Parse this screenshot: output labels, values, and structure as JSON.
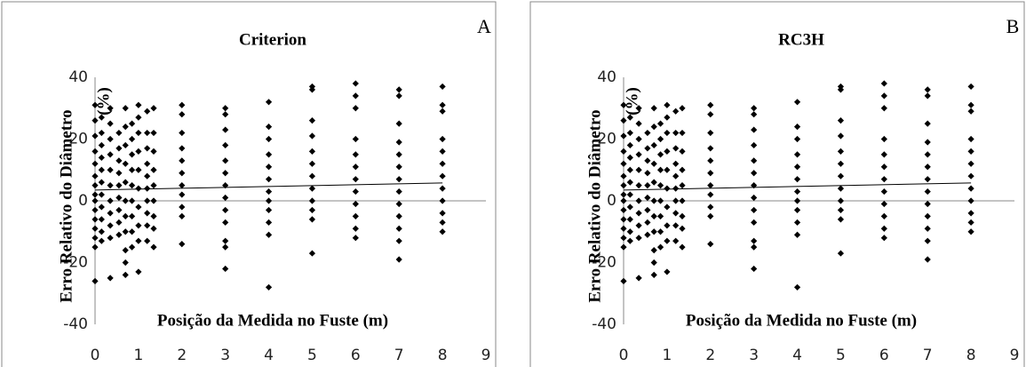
{
  "chart_data": [
    {
      "type": "scatter",
      "panel_label": "A",
      "title": "Criterion",
      "x_label": "Posição da Medida no Fuste (m)",
      "y_label": [
        "Erro Relativo do Diâmetro",
        "(%)"
      ],
      "color": "#000000",
      "xlim": [
        0,
        9
      ],
      "ylim": [
        -40,
        40
      ],
      "xticks": [
        0,
        1,
        2,
        3,
        4,
        5,
        6,
        7,
        8,
        9
      ],
      "yticks": [
        -40,
        -20,
        0,
        20,
        40
      ],
      "x": [
        0,
        0,
        0,
        0,
        0,
        0,
        0,
        0,
        0,
        0,
        0,
        0,
        0,
        0,
        0,
        0.15,
        0.15,
        0.15,
        0.15,
        0.15,
        0.15,
        0.15,
        0.15,
        0.15,
        0.15,
        0.15,
        0.35,
        0.35,
        0.35,
        0.35,
        0.35,
        0.35,
        0.35,
        0.35,
        0.35,
        0.35,
        0.35,
        0.55,
        0.55,
        0.55,
        0.55,
        0.55,
        0.55,
        0.55,
        0.55,
        0.55,
        0.7,
        0.7,
        0.7,
        0.7,
        0.7,
        0.7,
        0.7,
        0.7,
        0.7,
        0.7,
        0.7,
        0.85,
        0.85,
        0.85,
        0.85,
        0.85,
        0.85,
        0.85,
        0.85,
        0.85,
        1,
        1,
        1,
        1,
        1,
        1,
        1,
        1,
        1,
        1,
        1.2,
        1.2,
        1.2,
        1.2,
        1.2,
        1.2,
        1.2,
        1.2,
        1.2,
        1.2,
        1.35,
        1.35,
        1.35,
        1.35,
        1.35,
        1.35,
        1.35,
        1.35,
        1.35,
        2,
        2,
        2,
        2,
        2,
        2,
        2,
        2,
        2,
        2,
        2,
        3,
        3,
        3,
        3,
        3,
        3,
        3,
        3,
        3,
        3,
        3,
        3,
        3,
        4,
        4,
        4,
        4,
        4,
        4,
        4,
        4,
        4,
        4,
        4,
        4,
        5,
        5,
        5,
        5,
        5,
        5,
        5,
        5,
        5,
        5,
        5,
        5,
        6,
        6,
        6,
        6,
        6,
        6,
        6,
        6,
        6,
        6,
        6,
        6,
        7,
        7,
        7,
        7,
        7,
        7,
        7,
        7,
        7,
        7,
        7,
        7,
        7,
        8,
        8,
        8,
        8,
        8,
        8,
        8,
        8,
        8,
        8,
        8,
        8
      ],
      "values": [
        31,
        26,
        21,
        16,
        12,
        8,
        5,
        2,
        0,
        -3,
        -6,
        -9,
        -12,
        -15,
        -26,
        27,
        22,
        18,
        14,
        10,
        6,
        2,
        -2,
        -6,
        -10,
        -13,
        30,
        25,
        20,
        15,
        10,
        5,
        0,
        -4,
        -8,
        -12,
        -25,
        22,
        17,
        13,
        9,
        5,
        1,
        -3,
        -7,
        -11,
        30,
        24,
        18,
        12,
        6,
        0,
        -5,
        -10,
        -16,
        -20,
        -24,
        25,
        20,
        15,
        10,
        5,
        0,
        -5,
        -10,
        -15,
        31,
        27,
        22,
        16,
        10,
        4,
        -2,
        -8,
        -13,
        -23,
        29,
        22,
        17,
        12,
        8,
        4,
        0,
        -4,
        -8,
        -13,
        30,
        22,
        16,
        10,
        5,
        0,
        -5,
        -9,
        -15,
        31,
        28,
        22,
        17,
        13,
        9,
        5,
        2,
        -2,
        -5,
        -14,
        30,
        28,
        23,
        18,
        13,
        9,
        5,
        1,
        -3,
        -7,
        -13,
        -15,
        -22,
        32,
        24,
        20,
        15,
        11,
        7,
        3,
        0,
        -3,
        -7,
        -11,
        -28,
        37,
        36,
        26,
        21,
        16,
        12,
        8,
        4,
        0,
        -3,
        -6,
        -17,
        38,
        34,
        30,
        20,
        15,
        11,
        7,
        3,
        -1,
        -5,
        -9,
        -12,
        36,
        34,
        25,
        19,
        15,
        11,
        7,
        3,
        -1,
        -5,
        -9,
        -13,
        -19,
        37,
        31,
        29,
        20,
        16,
        12,
        8,
        4,
        0,
        -4,
        -7,
        -10
      ],
      "trendline": {
        "x": [
          0,
          8
        ],
        "values": [
          3.5,
          5.8
        ]
      }
    },
    {
      "type": "scatter",
      "panel_label": "B",
      "title": "RC3H",
      "x_label": "Posição da Medida no Fuste (m)",
      "y_label": [
        "Erro Relativo do Diâmetro",
        "(%)"
      ],
      "color": "#000000",
      "xlim": [
        0,
        9
      ],
      "ylim": [
        -40,
        40
      ],
      "xticks": [
        0,
        1,
        2,
        3,
        4,
        5,
        6,
        7,
        8,
        9
      ],
      "yticks": [
        -40,
        -20,
        0,
        20,
        40
      ],
      "x": [
        0,
        0,
        0,
        0,
        0,
        0,
        0,
        0,
        0,
        0,
        0,
        0,
        0,
        0,
        0,
        0.15,
        0.15,
        0.15,
        0.15,
        0.15,
        0.15,
        0.15,
        0.15,
        0.15,
        0.15,
        0.15,
        0.35,
        0.35,
        0.35,
        0.35,
        0.35,
        0.35,
        0.35,
        0.35,
        0.35,
        0.35,
        0.35,
        0.55,
        0.55,
        0.55,
        0.55,
        0.55,
        0.55,
        0.55,
        0.55,
        0.55,
        0.7,
        0.7,
        0.7,
        0.7,
        0.7,
        0.7,
        0.7,
        0.7,
        0.7,
        0.7,
        0.7,
        0.85,
        0.85,
        0.85,
        0.85,
        0.85,
        0.85,
        0.85,
        0.85,
        0.85,
        1,
        1,
        1,
        1,
        1,
        1,
        1,
        1,
        1,
        1,
        1.2,
        1.2,
        1.2,
        1.2,
        1.2,
        1.2,
        1.2,
        1.2,
        1.2,
        1.2,
        1.35,
        1.35,
        1.35,
        1.35,
        1.35,
        1.35,
        1.35,
        1.35,
        1.35,
        2,
        2,
        2,
        2,
        2,
        2,
        2,
        2,
        2,
        2,
        2,
        3,
        3,
        3,
        3,
        3,
        3,
        3,
        3,
        3,
        3,
        3,
        3,
        3,
        4,
        4,
        4,
        4,
        4,
        4,
        4,
        4,
        4,
        4,
        4,
        4,
        5,
        5,
        5,
        5,
        5,
        5,
        5,
        5,
        5,
        5,
        5,
        5,
        6,
        6,
        6,
        6,
        6,
        6,
        6,
        6,
        6,
        6,
        6,
        6,
        7,
        7,
        7,
        7,
        7,
        7,
        7,
        7,
        7,
        7,
        7,
        7,
        7,
        8,
        8,
        8,
        8,
        8,
        8,
        8,
        8,
        8,
        8,
        8,
        8
      ],
      "values": [
        31,
        26,
        21,
        16,
        12,
        8,
        5,
        2,
        0,
        -3,
        -6,
        -9,
        -12,
        -15,
        -26,
        27,
        22,
        18,
        14,
        10,
        6,
        2,
        -2,
        -6,
        -10,
        -13,
        30,
        25,
        20,
        15,
        10,
        5,
        0,
        -4,
        -8,
        -12,
        -25,
        22,
        17,
        13,
        9,
        5,
        1,
        -3,
        -7,
        -11,
        30,
        24,
        18,
        12,
        6,
        0,
        -5,
        -10,
        -16,
        -20,
        -24,
        25,
        20,
        15,
        10,
        5,
        0,
        -5,
        -10,
        -15,
        31,
        27,
        22,
        16,
        10,
        4,
        -2,
        -8,
        -13,
        -23,
        29,
        22,
        17,
        12,
        8,
        4,
        0,
        -4,
        -8,
        -13,
        30,
        22,
        16,
        10,
        5,
        0,
        -5,
        -9,
        -15,
        31,
        28,
        22,
        17,
        13,
        9,
        5,
        2,
        -2,
        -5,
        -14,
        30,
        28,
        23,
        18,
        13,
        9,
        5,
        1,
        -3,
        -7,
        -13,
        -15,
        -22,
        32,
        24,
        20,
        15,
        11,
        7,
        3,
        0,
        -3,
        -7,
        -11,
        -28,
        37,
        36,
        26,
        21,
        16,
        12,
        8,
        4,
        0,
        -3,
        -6,
        -17,
        38,
        34,
        30,
        20,
        15,
        11,
        7,
        3,
        -1,
        -5,
        -9,
        -12,
        36,
        34,
        25,
        19,
        15,
        11,
        7,
        3,
        -1,
        -5,
        -9,
        -13,
        -19,
        37,
        31,
        29,
        20,
        16,
        12,
        8,
        4,
        0,
        -4,
        -7,
        -10
      ],
      "trendline": {
        "x": [
          0,
          8
        ],
        "values": [
          3.5,
          5.8
        ]
      }
    }
  ]
}
